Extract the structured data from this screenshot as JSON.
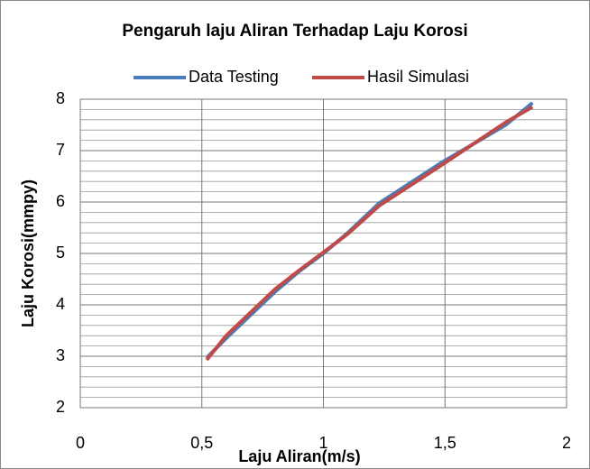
{
  "chart_data": {
    "type": "line",
    "title": "Pengaruh laju Aliran Terhadap Laju Korosi",
    "x_label": "Laju Aliran(m/s)",
    "y_label": "Laju Korosi(mmpy)",
    "x": [
      0.52,
      0.6,
      0.7,
      0.8,
      0.9,
      1.0,
      1.1,
      1.23,
      1.48,
      1.75,
      1.86
    ],
    "series": [
      {
        "name": "Data Testing",
        "color": "#4a7ebb",
        "values": [
          2.97,
          3.35,
          3.8,
          4.25,
          4.65,
          5.0,
          5.4,
          5.98,
          6.75,
          7.5,
          7.93
        ]
      },
      {
        "name": "Hasil Simulasi",
        "color": "#be4b48",
        "values": [
          2.93,
          3.4,
          3.85,
          4.3,
          4.67,
          5.02,
          5.38,
          5.93,
          6.7,
          7.55,
          7.85
        ]
      }
    ],
    "xlim": [
      0,
      2
    ],
    "xticks": [
      0,
      {
        "value": 0.5,
        "label": "0,5"
      },
      1,
      {
        "value": 1.5,
        "label": "1,5"
      },
      2
    ],
    "ylim": [
      2,
      8
    ],
    "yticks": [
      2,
      3,
      4,
      5,
      6,
      7,
      8
    ],
    "grid": true,
    "minor_grid": true,
    "legend": "top"
  }
}
